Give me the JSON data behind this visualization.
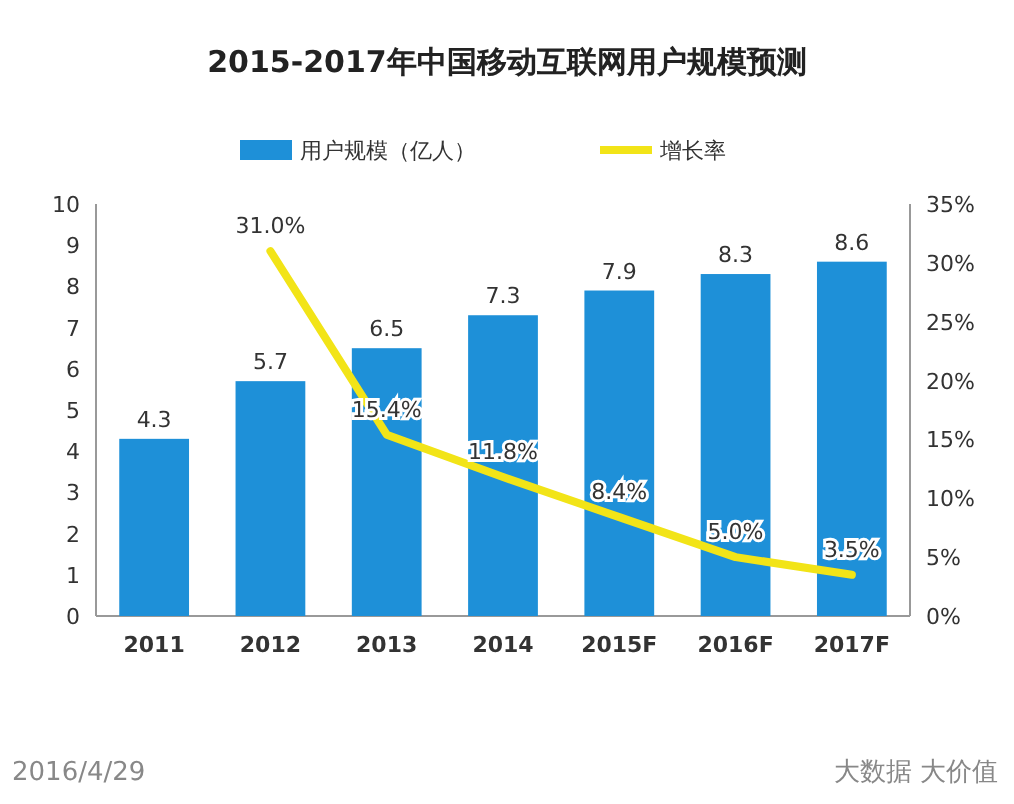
{
  "chart_data": {
    "type": "bar",
    "title": "2015-2017年中国移动互联网用户规模预测",
    "categories": [
      "2011",
      "2012",
      "2013",
      "2014",
      "2015F",
      "2016F",
      "2017F"
    ],
    "series": [
      {
        "name": "用户规模（亿人）",
        "color": "#1e90d8",
        "values": [
          4.3,
          5.7,
          6.5,
          7.3,
          7.9,
          8.3,
          8.6
        ],
        "value_labels": [
          "4.3",
          "5.7",
          "6.5",
          "7.3",
          "7.9",
          "8.3",
          "8.6"
        ]
      },
      {
        "name": "增长率",
        "type": "line",
        "axis": "y2",
        "color": "#f2e417",
        "values": [
          null,
          31.0,
          15.4,
          11.8,
          8.4,
          5.0,
          3.5
        ],
        "value_labels": [
          null,
          "31.0%",
          "15.4%",
          "11.8%",
          "8.4%",
          "5.0%",
          "3.5%"
        ]
      }
    ],
    "ylim": [
      0,
      10
    ],
    "yticks": [
      0,
      1,
      2,
      3,
      4,
      5,
      6,
      7,
      8,
      9,
      10
    ],
    "y2lim": [
      0,
      35
    ],
    "y2ticks": [
      {
        "value": 0,
        "label": "0%"
      },
      {
        "value": 5,
        "label": "5%"
      },
      {
        "value": 10,
        "label": "10%"
      },
      {
        "value": 15,
        "label": "15%"
      },
      {
        "value": 20,
        "label": "20%"
      },
      {
        "value": 25,
        "label": "25%"
      },
      {
        "value": 30,
        "label": "30%"
      },
      {
        "value": 35,
        "label": "35%"
      }
    ],
    "legend": "top",
    "grid": false,
    "annotations": [
      "2016/4/29",
      "大数据 大价值"
    ]
  }
}
